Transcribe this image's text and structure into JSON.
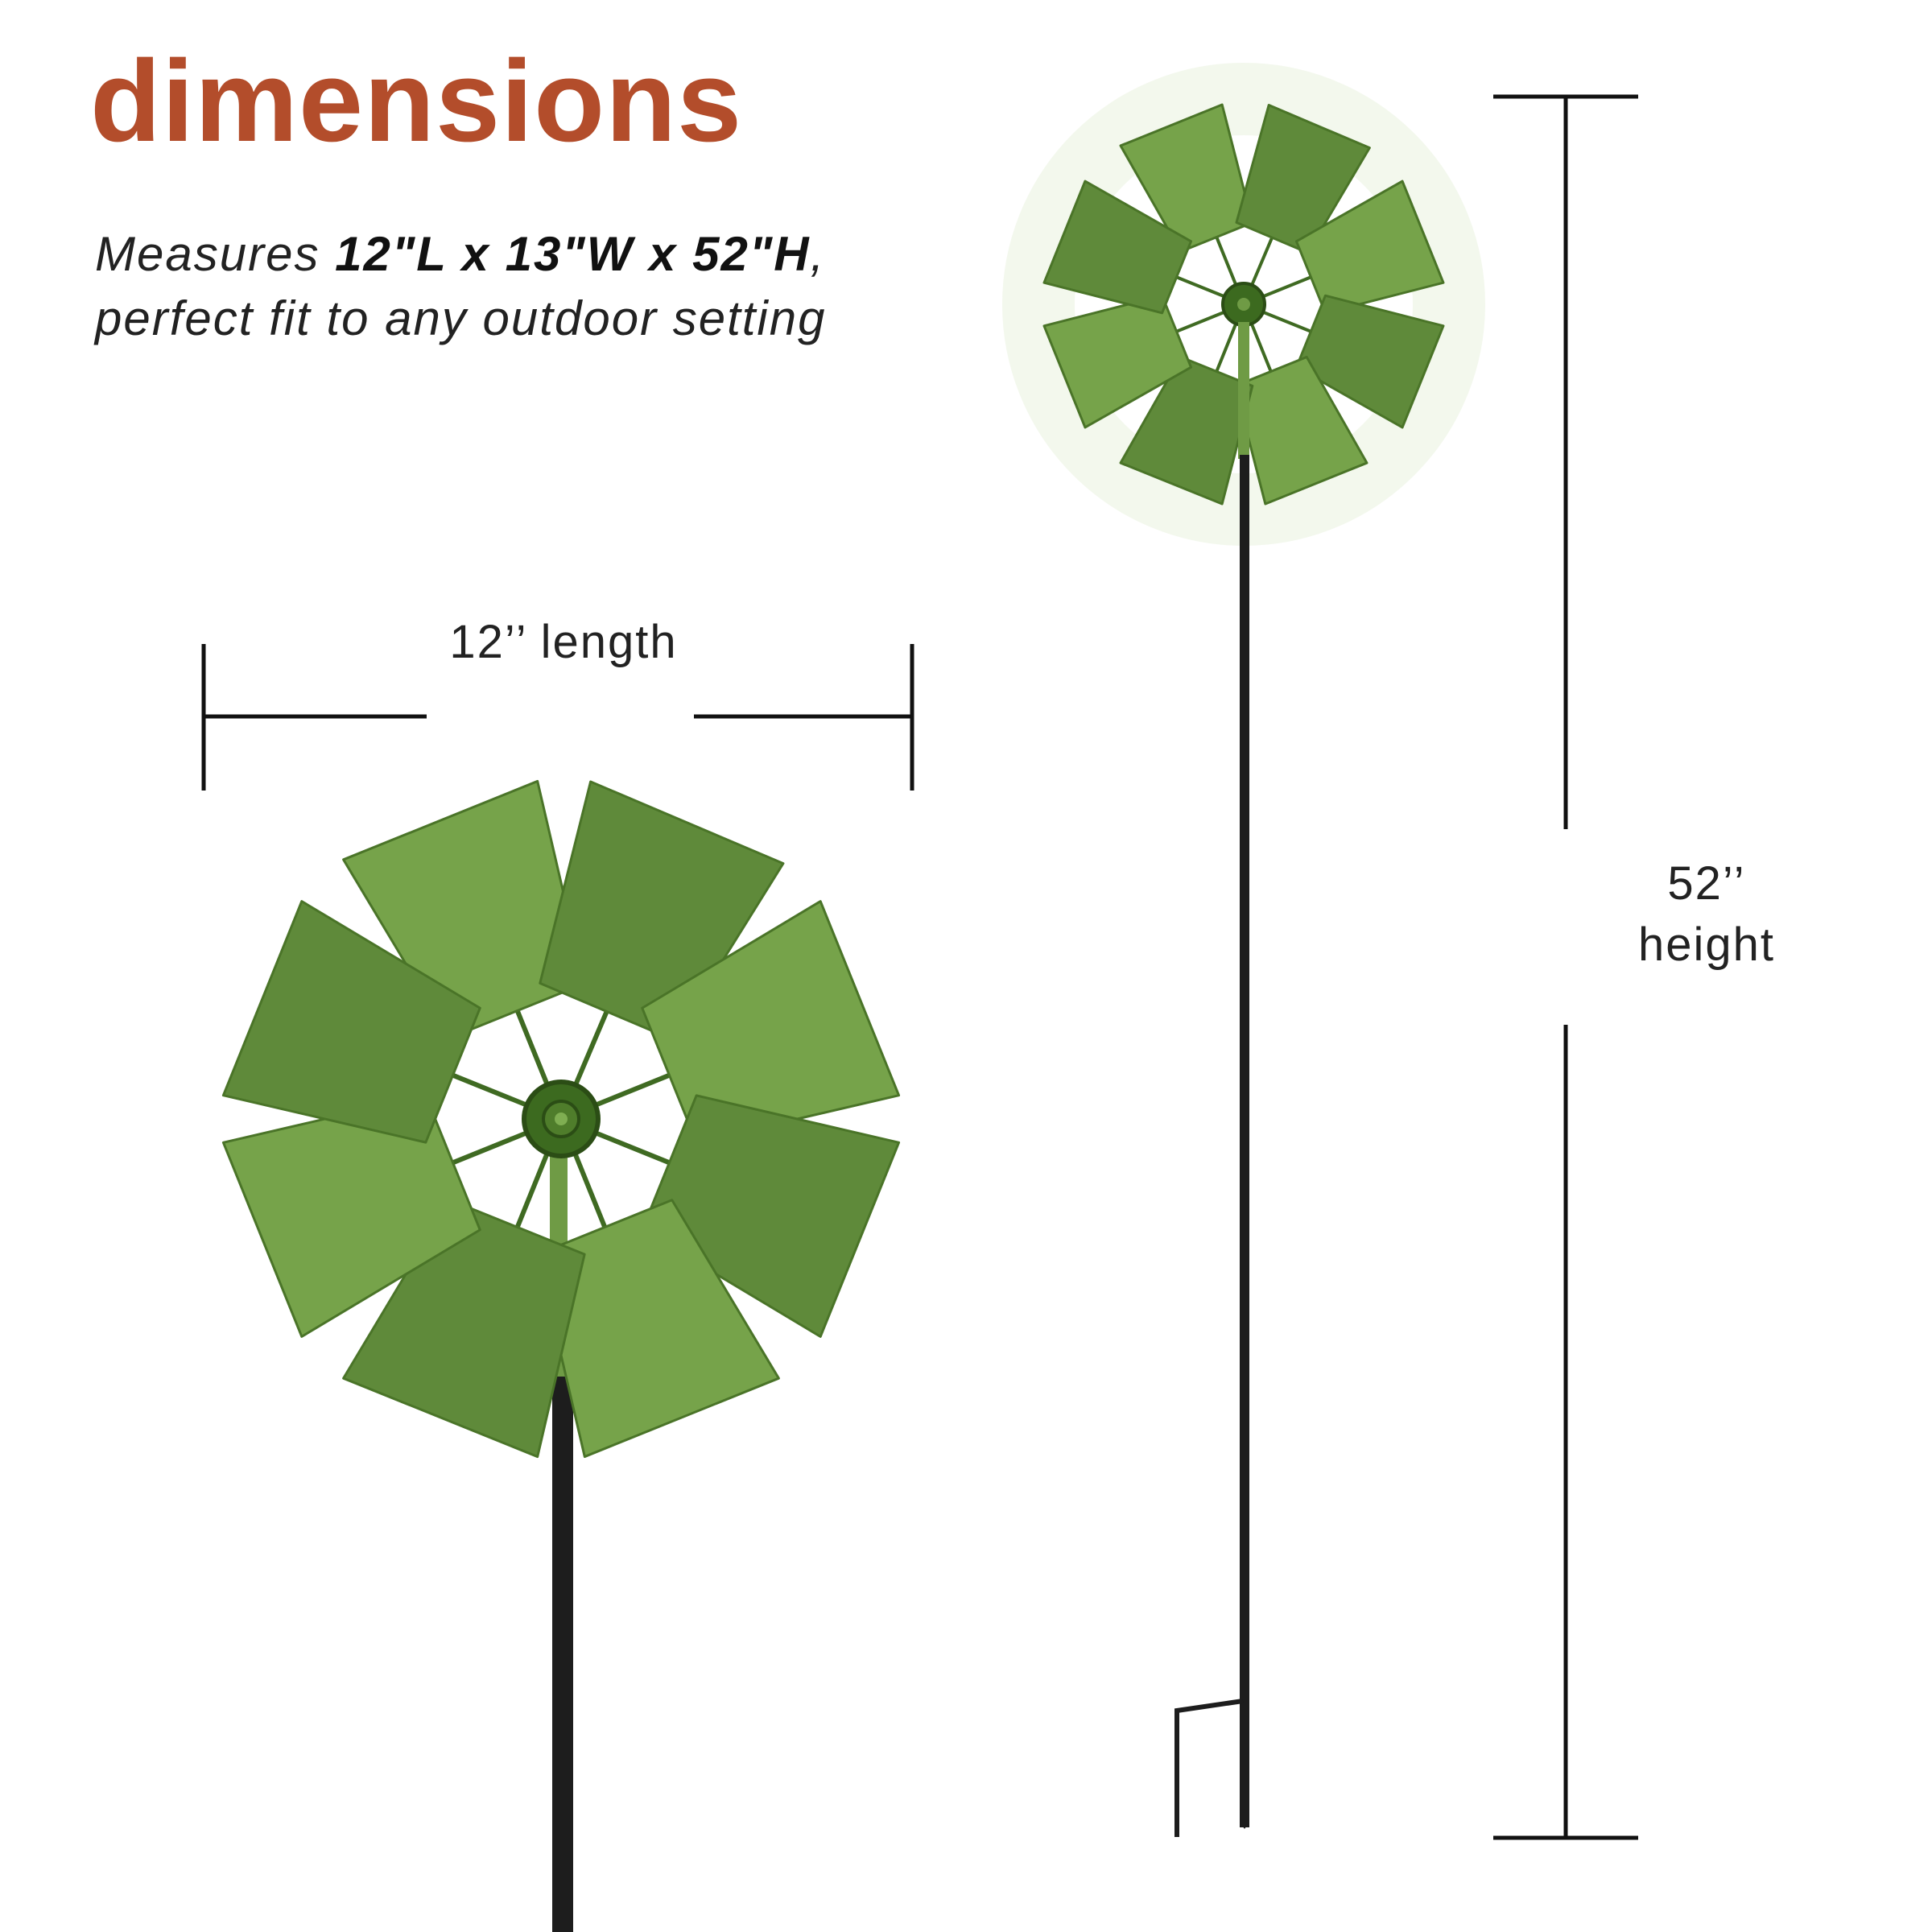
{
  "heading": "dimensions",
  "description": {
    "prefix": "Measures ",
    "measurements": "12\"L x 13\"W x 52\"H",
    "comma": ",",
    "line2": "perfect fit to any outdoor setting"
  },
  "length_label": "12’’ length",
  "height_label": {
    "value": "52’’",
    "word": "height"
  },
  "colors": {
    "heading": "#b34d2b",
    "blade": "#5f8a3a",
    "blade_light": "#76a34a",
    "pole": "#1d1d1d",
    "lines": "#111111"
  }
}
